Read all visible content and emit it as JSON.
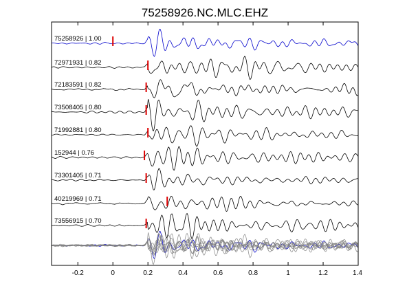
{
  "chart_data": {
    "type": "line",
    "title": "75258926.NC.MLC.EHZ",
    "xlabel": "",
    "ylabel": "",
    "xlim": [
      -0.35,
      1.4
    ],
    "xticks": [
      -0.2,
      0,
      0.2,
      0.4,
      0.6,
      0.8,
      1,
      1.2,
      1.4
    ],
    "xtick_labels": [
      "-0.2",
      "0",
      "0.2",
      "0.4",
      "0.6",
      "0.8",
      "1",
      "1.2",
      "1.4"
    ],
    "grid": false,
    "colors": {
      "reference": "#0000cc",
      "trace": "#000000",
      "pick": "#dd0000",
      "stack": "#808080"
    },
    "traces": [
      {
        "label": "75258926 | 1.00",
        "id": "75258926",
        "cc": 1.0,
        "pick": 0.0,
        "reference": true
      },
      {
        "label": "72971931 | 0.82",
        "id": "72971931",
        "cc": 0.82,
        "pick": 0.2,
        "reference": false
      },
      {
        "label": "72183591 | 0.82",
        "id": "72183591",
        "cc": 0.82,
        "pick": 0.19,
        "reference": false
      },
      {
        "label": "73508405 | 0.80",
        "id": "73508405",
        "cc": 0.8,
        "pick": 0.19,
        "reference": false
      },
      {
        "label": "71992881 | 0.80",
        "id": "71992881",
        "cc": 0.8,
        "pick": 0.2,
        "reference": false
      },
      {
        "label": "152944 | 0.76",
        "id": "152944",
        "cc": 0.76,
        "pick": 0.18,
        "reference": false
      },
      {
        "label": "73301405 | 0.71",
        "id": "73301405",
        "cc": 0.71,
        "pick": 0.19,
        "reference": false
      },
      {
        "label": "40219969 | 0.71",
        "id": "40219969",
        "cc": 0.71,
        "pick": 0.31,
        "reference": false
      },
      {
        "label": "73556915 | 0.70",
        "id": "73556915",
        "cc": 0.7,
        "pick": 0.19,
        "reference": false
      }
    ],
    "stack": {
      "count": 9
    }
  }
}
